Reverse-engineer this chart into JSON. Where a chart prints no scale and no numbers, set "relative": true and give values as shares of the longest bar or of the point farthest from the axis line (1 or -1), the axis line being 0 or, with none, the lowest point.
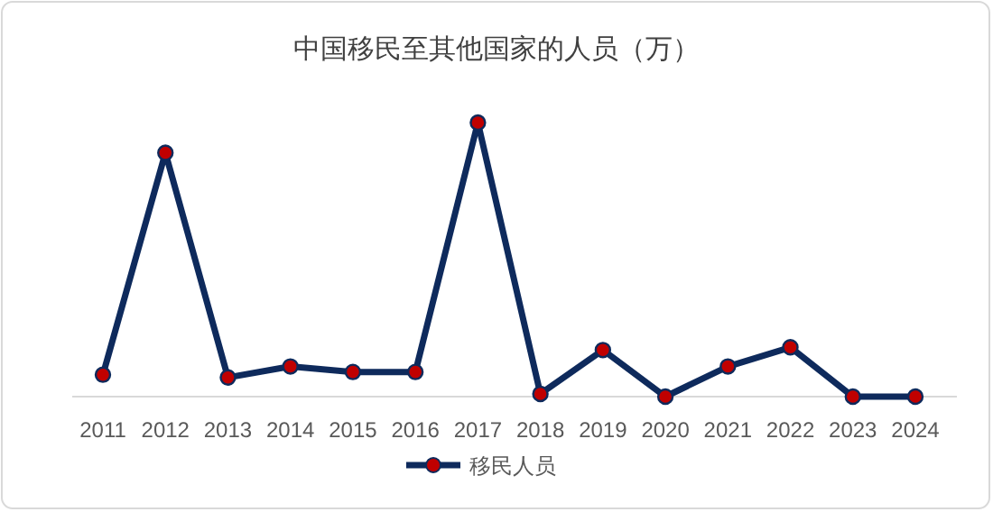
{
  "chart_data": {
    "type": "line",
    "title": "中国移民至其他国家的人员（万）",
    "relative": true,
    "categories": [
      "2011",
      "2012",
      "2013",
      "2014",
      "2015",
      "2016",
      "2017",
      "2018",
      "2019",
      "2020",
      "2021",
      "2022",
      "2023",
      "2024"
    ],
    "series": [
      {
        "name": "移民人员",
        "color": "#0e2a5c",
        "values": [
          0.08,
          0.89,
          0.07,
          0.11,
          0.09,
          0.09,
          1,
          0.01,
          0.17,
          0,
          0.11,
          0.18,
          0,
          0
        ]
      }
    ],
    "marker": "circle",
    "legend": "bottom",
    "grid": false
  }
}
